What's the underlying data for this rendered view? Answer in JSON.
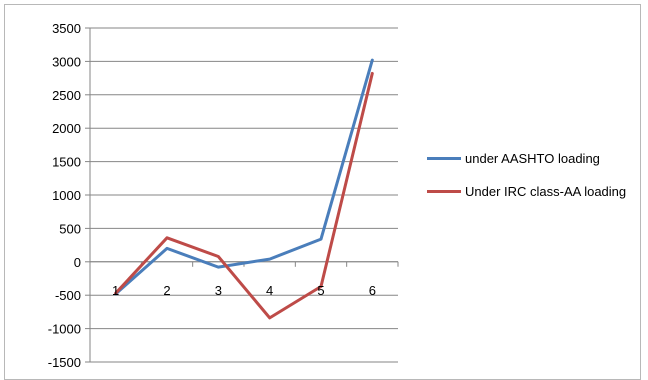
{
  "chart_data": {
    "type": "line",
    "x": [
      "1",
      "2",
      "3",
      "4",
      "5",
      "6"
    ],
    "ylim": [
      -1500,
      3500
    ],
    "yticks": [
      3500,
      3000,
      2500,
      2000,
      1500,
      1000,
      500,
      0,
      -500,
      -1000,
      -1500
    ],
    "grid": true,
    "legend_position": "right",
    "series": [
      {
        "name": "under AASHTO loading",
        "color": "#4a7ebb",
        "values": [
          -480,
          200,
          -80,
          40,
          340,
          3020
        ]
      },
      {
        "name": "Under IRC class-AA loading",
        "color": "#be4b48",
        "values": [
          -470,
          360,
          80,
          -840,
          -370,
          2820
        ]
      }
    ]
  }
}
